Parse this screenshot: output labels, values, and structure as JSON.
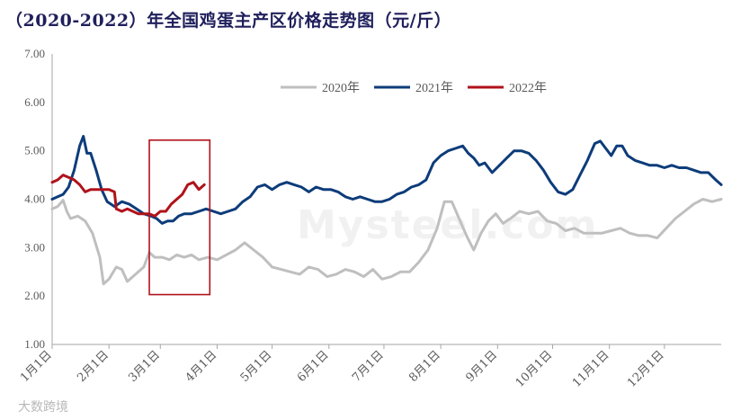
{
  "title": "（2020-2022）年全国鸡蛋主产区价格走势图（元/斤）",
  "watermark": "大数跨境",
  "bg_watermark": "Mysteel.com",
  "colors": {
    "s2020": "#bfbfbf",
    "s2021": "#0d3c7a",
    "s2022": "#b0121b",
    "box": "#b0121b",
    "axis": "#a6a6a6"
  },
  "chart_data": {
    "type": "line",
    "title": "（2020-2022）年全国鸡蛋主产区价格走势图（元/斤）",
    "xlabel": "",
    "ylabel": "",
    "ylim": [
      1.0,
      7.0
    ],
    "yticks": [
      "1.00",
      "2.00",
      "3.00",
      "4.00",
      "5.00",
      "6.00",
      "7.00"
    ],
    "x_domain_days": [
      0,
      365
    ],
    "xticks": [
      {
        "label": "1月1日",
        "day": 0
      },
      {
        "label": "2月1日",
        "day": 31
      },
      {
        "label": "3月1日",
        "day": 59
      },
      {
        "label": "4月1日",
        "day": 90
      },
      {
        "label": "5月1日",
        "day": 120
      },
      {
        "label": "6月1日",
        "day": 151
      },
      {
        "label": "7月1日",
        "day": 181
      },
      {
        "label": "8月1日",
        "day": 212
      },
      {
        "label": "9月1日",
        "day": 243
      },
      {
        "label": "10月1日",
        "day": 273
      },
      {
        "label": "11月1日",
        "day": 304
      },
      {
        "label": "12月1日",
        "day": 334
      }
    ],
    "legend_position": "top-right",
    "highlight_box_days": [
      53,
      86
    ],
    "highlight_box_values": [
      2.03,
      5.22
    ],
    "series": [
      {
        "name": "2020年",
        "color": "#bfbfbf",
        "points": [
          [
            0,
            3.8
          ],
          [
            3,
            3.85
          ],
          [
            6,
            3.98
          ],
          [
            8,
            3.75
          ],
          [
            10,
            3.6
          ],
          [
            14,
            3.65
          ],
          [
            18,
            3.55
          ],
          [
            22,
            3.3
          ],
          [
            26,
            2.8
          ],
          [
            28,
            2.25
          ],
          [
            31,
            2.35
          ],
          [
            35,
            2.6
          ],
          [
            38,
            2.55
          ],
          [
            41,
            2.3
          ],
          [
            44,
            2.4
          ],
          [
            47,
            2.5
          ],
          [
            50,
            2.6
          ],
          [
            53,
            2.9
          ],
          [
            56,
            2.8
          ],
          [
            60,
            2.8
          ],
          [
            64,
            2.75
          ],
          [
            68,
            2.85
          ],
          [
            72,
            2.8
          ],
          [
            76,
            2.85
          ],
          [
            80,
            2.75
          ],
          [
            85,
            2.8
          ],
          [
            90,
            2.75
          ],
          [
            95,
            2.85
          ],
          [
            100,
            2.95
          ],
          [
            105,
            3.1
          ],
          [
            110,
            2.95
          ],
          [
            115,
            2.8
          ],
          [
            120,
            2.6
          ],
          [
            125,
            2.55
          ],
          [
            130,
            2.5
          ],
          [
            135,
            2.45
          ],
          [
            140,
            2.6
          ],
          [
            145,
            2.55
          ],
          [
            150,
            2.4
          ],
          [
            155,
            2.45
          ],
          [
            160,
            2.55
          ],
          [
            165,
            2.5
          ],
          [
            170,
            2.4
          ],
          [
            175,
            2.55
          ],
          [
            180,
            2.35
          ],
          [
            185,
            2.4
          ],
          [
            190,
            2.5
          ],
          [
            195,
            2.5
          ],
          [
            200,
            2.7
          ],
          [
            205,
            2.95
          ],
          [
            210,
            3.4
          ],
          [
            214,
            3.95
          ],
          [
            218,
            3.95
          ],
          [
            222,
            3.6
          ],
          [
            226,
            3.25
          ],
          [
            230,
            2.95
          ],
          [
            234,
            3.3
          ],
          [
            238,
            3.55
          ],
          [
            242,
            3.7
          ],
          [
            246,
            3.5
          ],
          [
            250,
            3.6
          ],
          [
            255,
            3.75
          ],
          [
            260,
            3.7
          ],
          [
            265,
            3.75
          ],
          [
            270,
            3.55
          ],
          [
            275,
            3.5
          ],
          [
            280,
            3.35
          ],
          [
            285,
            3.4
          ],
          [
            290,
            3.3
          ],
          [
            295,
            3.3
          ],
          [
            300,
            3.3
          ],
          [
            305,
            3.35
          ],
          [
            310,
            3.4
          ],
          [
            315,
            3.3
          ],
          [
            320,
            3.25
          ],
          [
            325,
            3.25
          ],
          [
            330,
            3.2
          ],
          [
            335,
            3.4
          ],
          [
            340,
            3.6
          ],
          [
            345,
            3.75
          ],
          [
            350,
            3.9
          ],
          [
            355,
            4.0
          ],
          [
            360,
            3.95
          ],
          [
            365,
            4.0
          ]
        ]
      },
      {
        "name": "2021年",
        "color": "#0d3c7a",
        "points": [
          [
            0,
            4.0
          ],
          [
            3,
            4.05
          ],
          [
            6,
            4.1
          ],
          [
            9,
            4.25
          ],
          [
            12,
            4.6
          ],
          [
            15,
            5.1
          ],
          [
            17,
            5.3
          ],
          [
            19,
            4.95
          ],
          [
            21,
            4.95
          ],
          [
            24,
            4.6
          ],
          [
            27,
            4.2
          ],
          [
            30,
            3.95
          ],
          [
            34,
            3.85
          ],
          [
            38,
            3.95
          ],
          [
            42,
            3.9
          ],
          [
            46,
            3.8
          ],
          [
            50,
            3.7
          ],
          [
            54,
            3.65
          ],
          [
            57,
            3.6
          ],
          [
            60,
            3.5
          ],
          [
            63,
            3.55
          ],
          [
            66,
            3.55
          ],
          [
            69,
            3.65
          ],
          [
            72,
            3.7
          ],
          [
            76,
            3.7
          ],
          [
            80,
            3.75
          ],
          [
            84,
            3.8
          ],
          [
            88,
            3.75
          ],
          [
            92,
            3.7
          ],
          [
            96,
            3.75
          ],
          [
            100,
            3.8
          ],
          [
            104,
            3.95
          ],
          [
            108,
            4.05
          ],
          [
            112,
            4.25
          ],
          [
            116,
            4.3
          ],
          [
            120,
            4.2
          ],
          [
            124,
            4.3
          ],
          [
            128,
            4.35
          ],
          [
            132,
            4.3
          ],
          [
            136,
            4.25
          ],
          [
            140,
            4.15
          ],
          [
            144,
            4.25
          ],
          [
            148,
            4.2
          ],
          [
            152,
            4.2
          ],
          [
            156,
            4.15
          ],
          [
            160,
            4.05
          ],
          [
            164,
            4.0
          ],
          [
            168,
            4.05
          ],
          [
            172,
            4.0
          ],
          [
            176,
            3.95
          ],
          [
            180,
            3.95
          ],
          [
            184,
            4.0
          ],
          [
            188,
            4.1
          ],
          [
            192,
            4.15
          ],
          [
            196,
            4.25
          ],
          [
            200,
            4.3
          ],
          [
            204,
            4.4
          ],
          [
            208,
            4.75
          ],
          [
            212,
            4.9
          ],
          [
            216,
            5.0
          ],
          [
            220,
            5.05
          ],
          [
            224,
            5.1
          ],
          [
            227,
            4.95
          ],
          [
            230,
            4.85
          ],
          [
            233,
            4.7
          ],
          [
            236,
            4.75
          ],
          [
            240,
            4.55
          ],
          [
            244,
            4.7
          ],
          [
            248,
            4.85
          ],
          [
            252,
            5.0
          ],
          [
            256,
            5.0
          ],
          [
            260,
            4.95
          ],
          [
            264,
            4.8
          ],
          [
            268,
            4.6
          ],
          [
            272,
            4.35
          ],
          [
            276,
            4.15
          ],
          [
            280,
            4.1
          ],
          [
            284,
            4.2
          ],
          [
            288,
            4.5
          ],
          [
            292,
            4.8
          ],
          [
            296,
            5.15
          ],
          [
            299,
            5.2
          ],
          [
            302,
            5.05
          ],
          [
            305,
            4.9
          ],
          [
            308,
            5.1
          ],
          [
            311,
            5.1
          ],
          [
            314,
            4.9
          ],
          [
            318,
            4.8
          ],
          [
            322,
            4.75
          ],
          [
            326,
            4.7
          ],
          [
            330,
            4.7
          ],
          [
            334,
            4.65
          ],
          [
            338,
            4.7
          ],
          [
            342,
            4.65
          ],
          [
            346,
            4.65
          ],
          [
            350,
            4.6
          ],
          [
            354,
            4.55
          ],
          [
            358,
            4.55
          ],
          [
            362,
            4.4
          ],
          [
            365,
            4.3
          ]
        ]
      },
      {
        "name": "2022年",
        "color": "#b0121b",
        "points": [
          [
            0,
            4.35
          ],
          [
            3,
            4.4
          ],
          [
            6,
            4.5
          ],
          [
            9,
            4.45
          ],
          [
            12,
            4.4
          ],
          [
            15,
            4.3
          ],
          [
            18,
            4.15
          ],
          [
            21,
            4.2
          ],
          [
            24,
            4.2
          ],
          [
            28,
            4.2
          ],
          [
            31,
            4.2
          ],
          [
            34,
            4.15
          ],
          [
            35,
            3.8
          ],
          [
            38,
            3.75
          ],
          [
            41,
            3.8
          ],
          [
            44,
            3.75
          ],
          [
            47,
            3.7
          ],
          [
            50,
            3.7
          ],
          [
            53,
            3.7
          ],
          [
            56,
            3.65
          ],
          [
            59,
            3.75
          ],
          [
            62,
            3.75
          ],
          [
            65,
            3.9
          ],
          [
            68,
            4.0
          ],
          [
            71,
            4.1
          ],
          [
            74,
            4.3
          ],
          [
            77,
            4.35
          ],
          [
            80,
            4.2
          ],
          [
            83,
            4.3
          ]
        ]
      }
    ]
  }
}
